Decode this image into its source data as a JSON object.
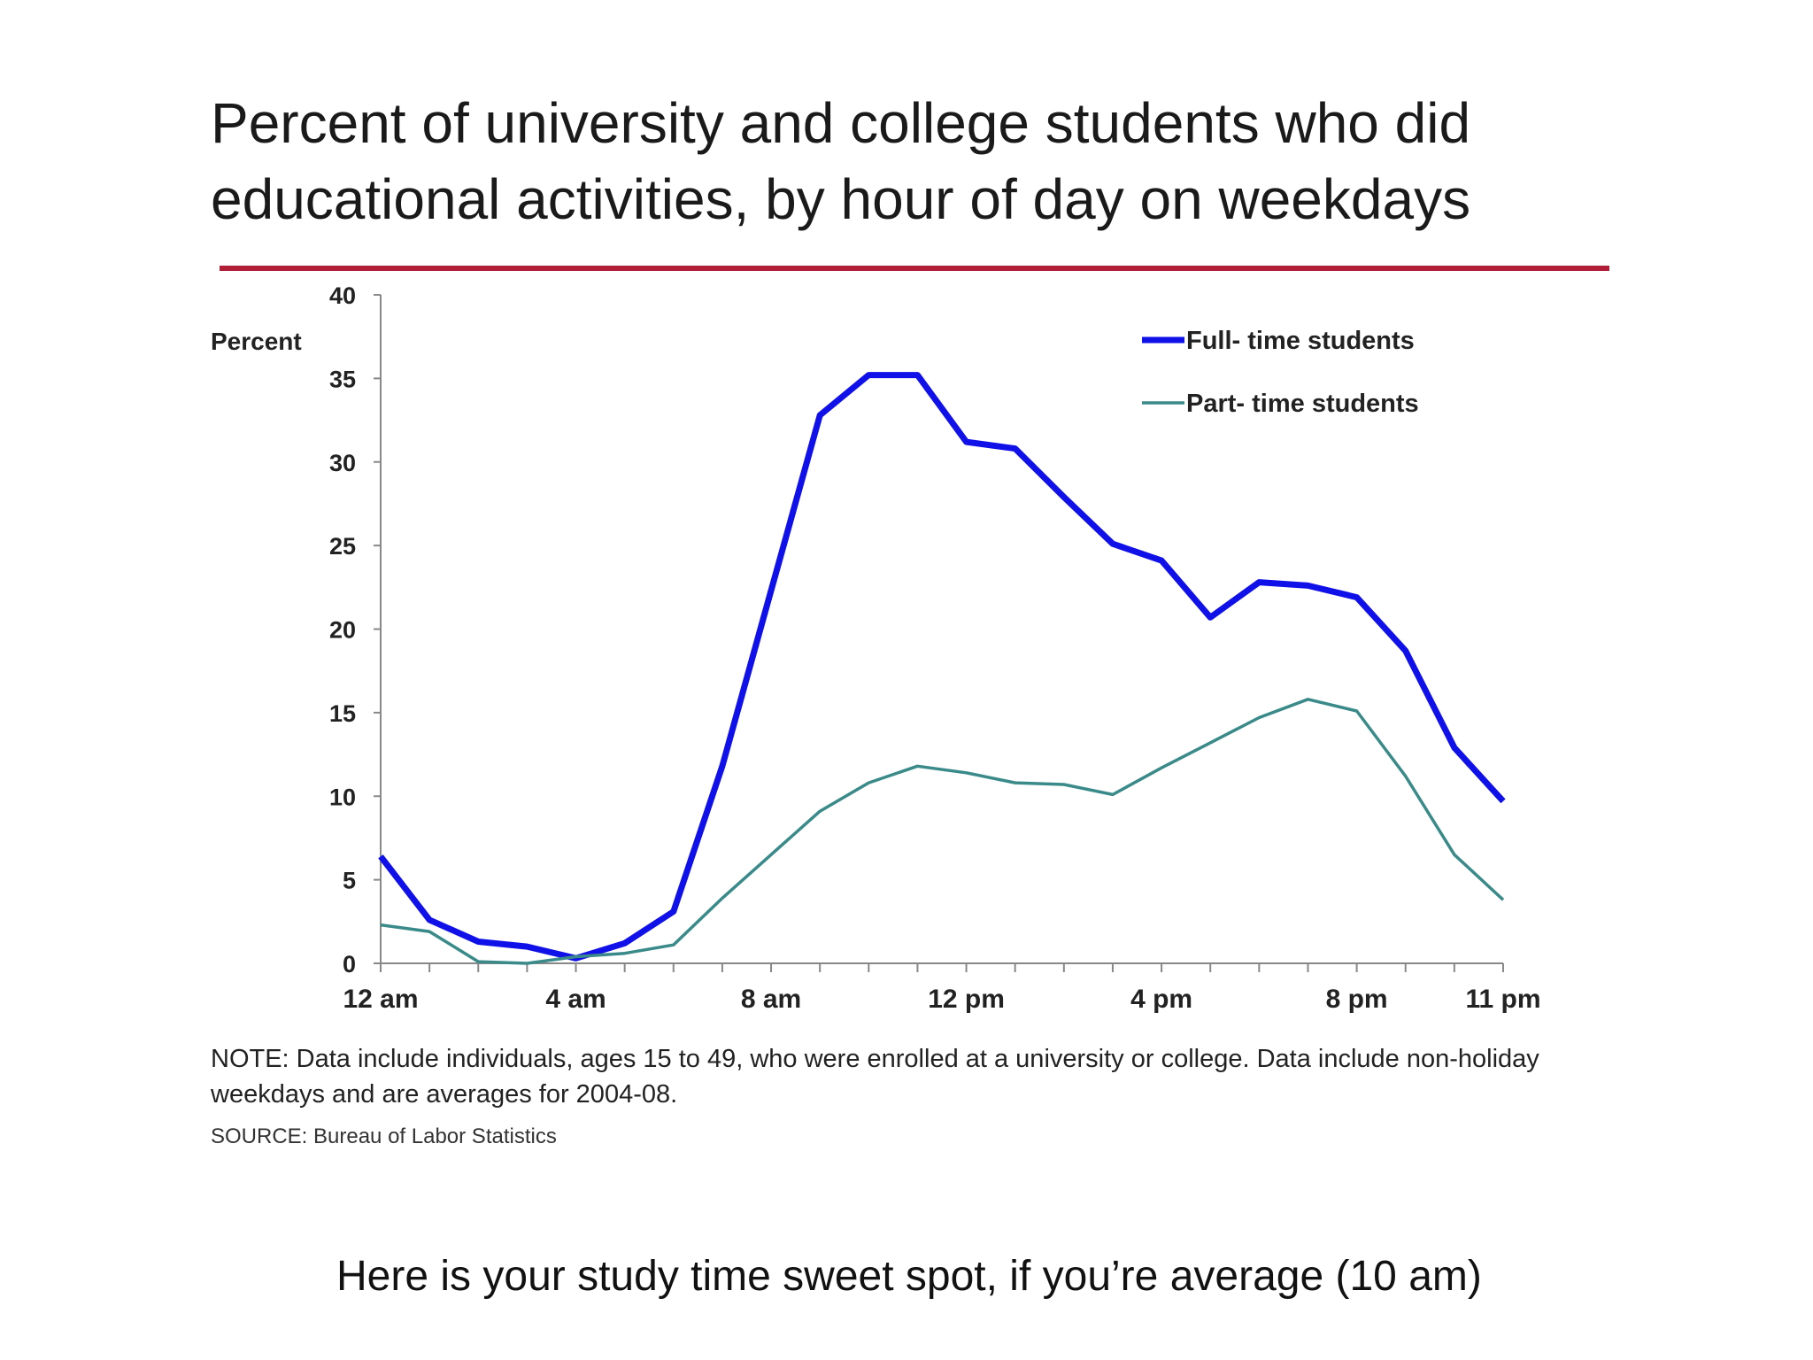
{
  "slide": {
    "title": "Percent of university and college students who did\neducational activities, by hour of day on weekdays",
    "note": "NOTE: Data include individuals, ages 15 to 49, who were enrolled at a university or college. Data include non-holiday weekdays and are averages for 2004-08.",
    "source": "SOURCE: Bureau of Labor Statistics",
    "caption": "Here is your study time sweet spot, if you’re average (10 am)",
    "rule_color": "#b01e38"
  },
  "chart_data": {
    "type": "line",
    "ylabel": "Percent",
    "xlabel": "",
    "ylim": [
      0,
      40
    ],
    "xlim": [
      0,
      23
    ],
    "y_ticks": [
      0,
      5,
      10,
      15,
      20,
      25,
      30,
      35,
      40
    ],
    "x_tick_labels": [
      {
        "x": 0,
        "label": "12 am"
      },
      {
        "x": 4,
        "label": "4 am"
      },
      {
        "x": 8,
        "label": "8 am"
      },
      {
        "x": 12,
        "label": "12 pm"
      },
      {
        "x": 16,
        "label": "4 pm"
      },
      {
        "x": 20,
        "label": "8 pm"
      },
      {
        "x": 23,
        "label": "11 pm"
      }
    ],
    "legend_position": "top-right",
    "grid": false,
    "series": [
      {
        "name": "Full- time students",
        "color": "#1010e8",
        "x": [
          0,
          1,
          2,
          3,
          4,
          5,
          6,
          7,
          8,
          9,
          10,
          11,
          12,
          13,
          14,
          15,
          16,
          17,
          18,
          19,
          20,
          21,
          22,
          23
        ],
        "values": [
          6.4,
          2.6,
          1.3,
          1.0,
          0.3,
          1.2,
          3.1,
          11.8,
          22.3,
          32.8,
          35.2,
          35.2,
          31.2,
          30.8,
          27.9,
          25.1,
          24.1,
          20.7,
          22.8,
          22.6,
          21.9,
          18.7,
          12.9,
          9.7
        ]
      },
      {
        "name": "Part- time students",
        "color": "#3a8a8a",
        "x": [
          0,
          1,
          2,
          3,
          4,
          5,
          6,
          7,
          8,
          9,
          10,
          11,
          12,
          13,
          14,
          15,
          16,
          17,
          18,
          19,
          20,
          21,
          22,
          23
        ],
        "values": [
          2.3,
          1.9,
          0.1,
          0.0,
          0.4,
          0.6,
          1.1,
          3.9,
          6.5,
          9.1,
          10.8,
          11.8,
          11.4,
          10.8,
          10.7,
          10.1,
          11.7,
          13.2,
          14.7,
          15.8,
          15.1,
          11.2,
          6.5,
          3.8
        ]
      }
    ]
  }
}
